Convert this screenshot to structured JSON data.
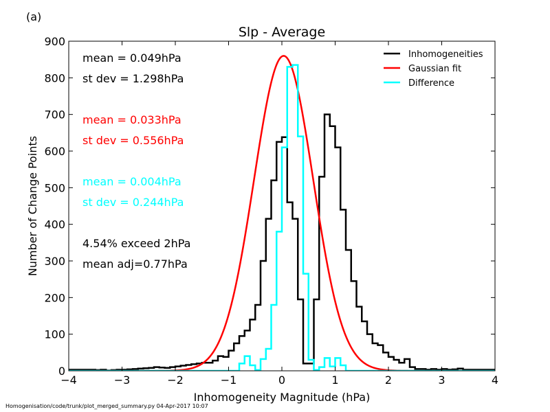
{
  "panel_label": "(a)",
  "footer": "Homogenisation/code/trunk/plot_merged_summary.py   04-Apr-2017 10:07",
  "chart_data": {
    "type": "line",
    "title": "Slp - Average",
    "xlabel": "Inhomogeneity Magnitude (hPa)",
    "ylabel": "Number of Change Points",
    "xlim": [
      -4,
      4
    ],
    "ylim": [
      0,
      900
    ],
    "xticks": [
      -4,
      -3,
      -2,
      -1,
      0,
      1,
      2,
      3,
      4
    ],
    "xtick_labels": [
      "−4",
      "−3",
      "−2",
      "−1",
      "0",
      "1",
      "2",
      "3",
      "4"
    ],
    "yticks": [
      0,
      100,
      200,
      300,
      400,
      500,
      600,
      700,
      800,
      900
    ],
    "ytick_labels": [
      "0",
      "100",
      "200",
      "300",
      "400",
      "500",
      "600",
      "700",
      "800",
      "900"
    ],
    "grid": false,
    "legend_position": "top-right",
    "bin_edges_start": -4.0,
    "bin_width": 0.1,
    "series": [
      {
        "name": "Inhomogeneities",
        "color": "#000000",
        "style": "step",
        "values": [
          3,
          3,
          3,
          3,
          3,
          2,
          3,
          1,
          2,
          3,
          3,
          4,
          5,
          6,
          7,
          8,
          10,
          9,
          8,
          10,
          12,
          14,
          16,
          18,
          20,
          22,
          22,
          28,
          40,
          38,
          55,
          75,
          95,
          110,
          140,
          180,
          300,
          415,
          520,
          625,
          638,
          460,
          415,
          195,
          20,
          20,
          195,
          530,
          700,
          668,
          610,
          440,
          330,
          245,
          175,
          135,
          100,
          75,
          70,
          50,
          38,
          30,
          22,
          32,
          10,
          5,
          5,
          3,
          5,
          3,
          5,
          3,
          4,
          6,
          3,
          3,
          3,
          3,
          3,
          3
        ]
      },
      {
        "name": "Gaussian fit",
        "color": "#ff0000",
        "style": "line",
        "mean": 0.033,
        "sigma": 0.556,
        "peak": 860
      },
      {
        "name": "Difference",
        "color": "#00ffff",
        "style": "step",
        "values": [
          0,
          0,
          0,
          0,
          0,
          0,
          0,
          0,
          0,
          0,
          0,
          0,
          0,
          0,
          0,
          0,
          0,
          0,
          0,
          0,
          0,
          0,
          0,
          0,
          0,
          0,
          0,
          0,
          0,
          0,
          0,
          0,
          20,
          40,
          15,
          2,
          32,
          60,
          180,
          380,
          610,
          830,
          835,
          640,
          265,
          30,
          2,
          10,
          35,
          12,
          35,
          15,
          0,
          0,
          0,
          0,
          0,
          0,
          0,
          0,
          0,
          0,
          0,
          0,
          0,
          0,
          0,
          0,
          0,
          0,
          0,
          0,
          0,
          0,
          0,
          0,
          0,
          0,
          0,
          0
        ]
      }
    ],
    "annotations": [
      {
        "text": "mean =  0.049hPa",
        "color": "#000000"
      },
      {
        "text": "st dev =  1.298hPa",
        "color": "#000000"
      },
      {
        "text": "mean =  0.033hPa",
        "color": "#ff0000"
      },
      {
        "text": "st dev =  0.556hPa",
        "color": "#ff0000"
      },
      {
        "text": "mean =  0.004hPa",
        "color": "#00ffff"
      },
      {
        "text": "st dev =  0.244hPa",
        "color": "#00ffff"
      },
      {
        "text": "4.54% exceed 2hPa",
        "color": "#000000"
      },
      {
        "text": "mean adj=0.77hPa",
        "color": "#000000"
      }
    ]
  }
}
